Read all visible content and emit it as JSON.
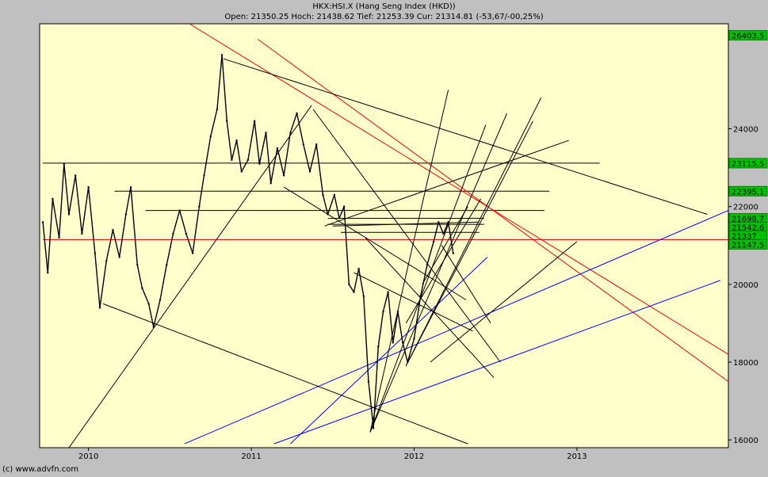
{
  "chart_data": {
    "type": "line",
    "title": "HKX:HSI.X (Hang Seng Index (HKD))",
    "subtitle": "Open: 21350.25 Hoch: 21438.62 Tief: 21253.39 Cur: 21314.81 (-53,67/-00,25%)",
    "xlabel": "",
    "ylabel": "",
    "ylim": [
      15800,
      26700
    ],
    "xlim": [
      2009.7,
      2013.93
    ],
    "x_ticks": [
      {
        "value": 2010,
        "label": "2010"
      },
      {
        "value": 2011,
        "label": "2011"
      },
      {
        "value": 2012,
        "label": "2012"
      },
      {
        "value": 2013,
        "label": "2013"
      }
    ],
    "y_ticks": [
      {
        "value": 16000,
        "label": "16000"
      },
      {
        "value": 18000,
        "label": "18000"
      },
      {
        "value": 20000,
        "label": "20000"
      },
      {
        "value": 22000,
        "label": "22000"
      },
      {
        "value": 24000,
        "label": "24000"
      }
    ],
    "price_labels": [
      {
        "value": 26403.5,
        "label": "26403,5"
      },
      {
        "value": 23115.5,
        "label": "23115,5"
      },
      {
        "value": 22395.1,
        "label": "22395,1"
      },
      {
        "value": 21698.7,
        "label": "21698,7"
      },
      {
        "value": 21542.6,
        "label": "21542,6"
      },
      {
        "value": 21337,
        "label": "21337"
      },
      {
        "value": 21147.5,
        "label": "21147,5"
      }
    ],
    "grid": false,
    "series": [
      {
        "color": "#000000",
        "points": [
          [
            2009.72,
            21600
          ],
          [
            2009.75,
            20300
          ],
          [
            2009.78,
            22200
          ],
          [
            2009.82,
            21200
          ],
          [
            2009.85,
            23100
          ],
          [
            2009.88,
            21800
          ],
          [
            2009.92,
            22800
          ],
          [
            2009.96,
            21300
          ],
          [
            2010.0,
            22500
          ],
          [
            2010.04,
            20800
          ],
          [
            2010.07,
            19400
          ],
          [
            2010.11,
            20600
          ],
          [
            2010.15,
            21400
          ],
          [
            2010.19,
            20700
          ],
          [
            2010.23,
            21800
          ],
          [
            2010.26,
            22500
          ],
          [
            2010.3,
            20500
          ],
          [
            2010.33,
            19900
          ],
          [
            2010.37,
            19500
          ],
          [
            2010.4,
            18900
          ],
          [
            2010.44,
            19600
          ],
          [
            2010.48,
            20500
          ],
          [
            2010.52,
            21300
          ],
          [
            2010.56,
            21900
          ],
          [
            2010.6,
            21300
          ],
          [
            2010.64,
            20800
          ],
          [
            2010.68,
            22000
          ],
          [
            2010.71,
            22800
          ],
          [
            2010.75,
            23800
          ],
          [
            2010.79,
            24500
          ],
          [
            2010.82,
            25900
          ],
          [
            2010.85,
            24200
          ],
          [
            2010.88,
            23200
          ],
          [
            2010.91,
            23700
          ],
          [
            2010.94,
            22900
          ],
          [
            2010.98,
            23200
          ],
          [
            2011.02,
            24200
          ],
          [
            2011.05,
            23100
          ],
          [
            2011.09,
            23900
          ],
          [
            2011.12,
            22600
          ],
          [
            2011.16,
            23500
          ],
          [
            2011.2,
            22800
          ],
          [
            2011.24,
            23900
          ],
          [
            2011.28,
            24400
          ],
          [
            2011.32,
            23600
          ],
          [
            2011.36,
            22900
          ],
          [
            2011.4,
            23600
          ],
          [
            2011.44,
            22300
          ],
          [
            2011.47,
            21800
          ],
          [
            2011.51,
            22300
          ],
          [
            2011.54,
            21700
          ],
          [
            2011.57,
            22000
          ],
          [
            2011.6,
            20000
          ],
          [
            2011.63,
            19800
          ],
          [
            2011.66,
            20400
          ],
          [
            2011.69,
            19700
          ],
          [
            2011.72,
            17500
          ],
          [
            2011.75,
            16300
          ],
          [
            2011.78,
            18400
          ],
          [
            2011.81,
            19300
          ],
          [
            2011.84,
            19800
          ],
          [
            2011.87,
            18500
          ],
          [
            2011.9,
            19300
          ],
          [
            2011.93,
            18500
          ],
          [
            2011.96,
            18000
          ],
          [
            2012.0,
            18600
          ],
          [
            2012.04,
            19700
          ],
          [
            2012.08,
            20500
          ],
          [
            2012.12,
            21100
          ],
          [
            2012.15,
            21600
          ],
          [
            2012.18,
            21300
          ],
          [
            2012.21,
            21600
          ],
          [
            2012.24,
            20800
          ]
        ]
      }
    ],
    "trend_lines": [
      {
        "color": "#000000",
        "points": [
          [
            2009.88,
            15800
          ],
          [
            2011.37,
            24600
          ]
        ]
      },
      {
        "color": "#000000",
        "points": [
          [
            2010.09,
            19500
          ],
          [
            2012.33,
            15900
          ]
        ]
      },
      {
        "color": "#000000",
        "points": [
          [
            2011.7,
            21200
          ],
          [
            2012.49,
            17600
          ]
        ]
      },
      {
        "color": "#000000",
        "points": [
          [
            2011.63,
            20300
          ],
          [
            2012.36,
            18800
          ]
        ]
      },
      {
        "color": "#000000",
        "points": [
          [
            2010.83,
            25800
          ],
          [
            2013.8,
            21800
          ]
        ]
      },
      {
        "color": "#000000",
        "points": [
          [
            2011.38,
            24500
          ],
          [
            2012.53,
            18000
          ]
        ]
      },
      {
        "color": "#000000",
        "points": [
          [
            2011.2,
            22500
          ],
          [
            2012.32,
            19600
          ]
        ]
      },
      {
        "color": "#000000",
        "points": [
          [
            2011.45,
            21500
          ],
          [
            2012.95,
            23700
          ]
        ]
      },
      {
        "color": "#000000",
        "points": [
          [
            2011.73,
            16200
          ],
          [
            2012.21,
            25000
          ]
        ]
      },
      {
        "color": "#000000",
        "points": [
          [
            2011.73,
            16200
          ],
          [
            2012.44,
            24100
          ]
        ]
      },
      {
        "color": "#000000",
        "points": [
          [
            2011.73,
            16200
          ],
          [
            2012.57,
            24400
          ]
        ]
      },
      {
        "color": "#000000",
        "points": [
          [
            2011.95,
            17900
          ],
          [
            2012.78,
            24800
          ]
        ]
      },
      {
        "color": "#000000",
        "points": [
          [
            2011.95,
            17900
          ],
          [
            2012.73,
            24200
          ]
        ]
      },
      {
        "color": "#000000",
        "points": [
          [
            2012.17,
            21000
          ],
          [
            2012.47,
            19000
          ]
        ]
      },
      {
        "color": "#000000",
        "points": [
          [
            2012.1,
            18000
          ],
          [
            2013.0,
            21100
          ]
        ]
      },
      {
        "color": "#000000",
        "points": [
          [
            2012.05,
            20000
          ],
          [
            2012.33,
            22000
          ]
        ]
      },
      {
        "color": "#000000",
        "points": [
          [
            2011.95,
            19000
          ],
          [
            2012.41,
            22200
          ]
        ]
      },
      {
        "color": "#000000",
        "points": [
          [
            2011.5,
            21500
          ],
          [
            2012.4,
            21600
          ]
        ]
      }
    ],
    "horizontal_lines": [
      {
        "color": "#000000",
        "y": 23115.5,
        "x0": 2009.72,
        "x1": 2013.14
      },
      {
        "color": "#000000",
        "y": 22395.1,
        "x0": 2010.16,
        "x1": 2012.83
      },
      {
        "color": "#000000",
        "y": 21900,
        "x0": 2010.35,
        "x1": 2012.8
      },
      {
        "color": "#000000",
        "y": 21698.7,
        "x0": 2011.47,
        "x1": 2012.43
      },
      {
        "color": "#000000",
        "y": 21542.6,
        "x0": 2011.47,
        "x1": 2012.43
      },
      {
        "color": "#000000",
        "y": 21337,
        "x0": 2011.55,
        "x1": 2012.4
      },
      {
        "color": "#ff0000",
        "y": 21147.5,
        "x0": 2009.72,
        "x1": 2013.93
      }
    ],
    "red_lines": [
      {
        "color": "#ff0000",
        "points": [
          [
            2010.62,
            26700
          ],
          [
            2013.93,
            18200
          ]
        ]
      },
      {
        "color": "#ff0000",
        "points": [
          [
            2011.04,
            26300
          ],
          [
            2013.93,
            17500
          ]
        ]
      }
    ],
    "blue_lines": [
      {
        "color": "#0000ff",
        "points": [
          [
            2010.59,
            15900
          ],
          [
            2013.93,
            21900
          ]
        ]
      },
      {
        "color": "#0000ff",
        "points": [
          [
            2011.14,
            15900
          ],
          [
            2013.88,
            20100
          ]
        ]
      },
      {
        "color": "#0000ff",
        "points": [
          [
            2011.24,
            15900
          ],
          [
            2012.45,
            20700
          ]
        ]
      }
    ]
  },
  "footer": "(c) www.advfn.com"
}
